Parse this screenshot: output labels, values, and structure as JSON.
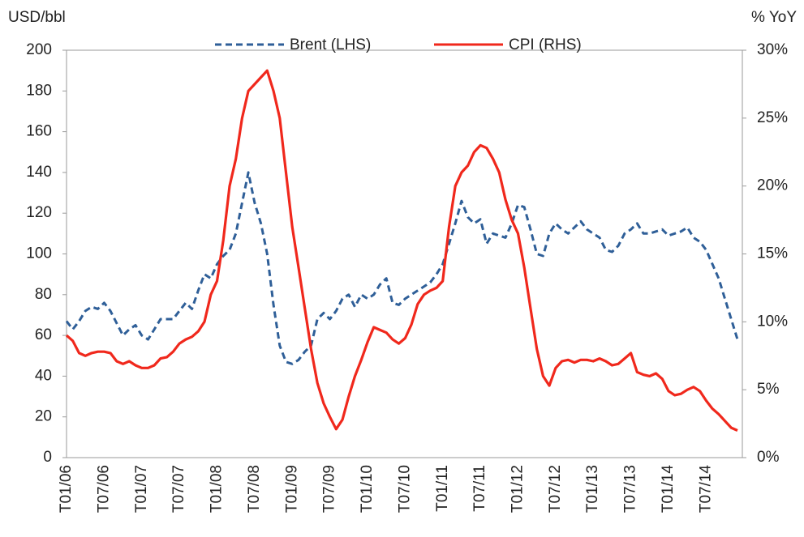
{
  "chart_data": {
    "type": "line",
    "y_label": "USD/bbl",
    "y2_label": "% YoY",
    "categories": [
      "T01/06",
      null,
      null,
      null,
      null,
      null,
      "T07/06",
      null,
      null,
      null,
      null,
      null,
      "T01/07",
      null,
      null,
      null,
      null,
      null,
      "T07/07",
      null,
      null,
      null,
      null,
      null,
      "T01/08",
      null,
      null,
      null,
      null,
      null,
      "T07/08",
      null,
      null,
      null,
      null,
      null,
      "T01/09",
      null,
      null,
      null,
      null,
      null,
      "T07/09",
      null,
      null,
      null,
      null,
      null,
      "T01/10",
      null,
      null,
      null,
      null,
      null,
      "T07/10",
      null,
      null,
      null,
      null,
      null,
      "T01/11",
      null,
      null,
      null,
      null,
      null,
      "T07/11",
      null,
      null,
      null,
      null,
      null,
      "T01/12",
      null,
      null,
      null,
      null,
      null,
      "T07/12",
      null,
      null,
      null,
      null,
      null,
      "T01/13",
      null,
      null,
      null,
      null,
      null,
      "T07/13",
      null,
      null,
      null,
      null,
      null,
      "T01/14",
      null,
      null,
      null,
      null,
      null,
      "T07/14",
      null,
      null,
      null,
      null,
      null
    ],
    "series": [
      {
        "name": "Brent (LHS)",
        "color": "#2f5f98",
        "dash": true,
        "axis": "y",
        "values": [
          67,
          63,
          67,
          72,
          74,
          73,
          76,
          72,
          66,
          60,
          63,
          65,
          60,
          58,
          63,
          68,
          68,
          68,
          72,
          76,
          73,
          82,
          90,
          88,
          95,
          99,
          102,
          110,
          125,
          140,
          125,
          115,
          100,
          75,
          55,
          47,
          46,
          48,
          52,
          55,
          68,
          71,
          68,
          72,
          78,
          80,
          74,
          80,
          78,
          80,
          85,
          88,
          76,
          75,
          78,
          80,
          82,
          84,
          86,
          90,
          95,
          105,
          115,
          126,
          118,
          115,
          117,
          105,
          110,
          109,
          108,
          115,
          124,
          123,
          112,
          100,
          99,
          110,
          115,
          112,
          110,
          113,
          116,
          112,
          110,
          108,
          102,
          101,
          104,
          110,
          112,
          115,
          110,
          110,
          111,
          112,
          109,
          110,
          111,
          113,
          108,
          106,
          102,
          95,
          88,
          78,
          68,
          58
        ]
      },
      {
        "name": "CPI (RHS)",
        "color": "#f0281c",
        "dash": false,
        "axis": "y2",
        "values": [
          9,
          8.6,
          7.7,
          7.5,
          7.7,
          7.8,
          7.8,
          7.7,
          7.1,
          6.9,
          7.1,
          6.8,
          6.6,
          6.6,
          6.8,
          7.3,
          7.4,
          7.8,
          8.4,
          8.7,
          8.9,
          9.3,
          10,
          12,
          13,
          16,
          20,
          22,
          25,
          27,
          27.5,
          28,
          28.5,
          27,
          25,
          21,
          17,
          14,
          11,
          8,
          5.5,
          4,
          3,
          2.1,
          2.8,
          4.5,
          6,
          7.2,
          8.5,
          9.6,
          9.4,
          9.2,
          8.7,
          8.4,
          8.8,
          9.8,
          11.3,
          12,
          12.3,
          12.5,
          13,
          17,
          20,
          21,
          21.5,
          22.5,
          23,
          22.8,
          22,
          21,
          19,
          17.5,
          16.5,
          14,
          11,
          8,
          6,
          5.3,
          6.6,
          7.1,
          7.2,
          7,
          7.2,
          7.2,
          7.1,
          7.3,
          7.1,
          6.8,
          6.9,
          7.3,
          7.7,
          6.3,
          6.1,
          6,
          6.2,
          5.8,
          4.9,
          4.6,
          4.7,
          5,
          5.2,
          4.9,
          4.2,
          3.6,
          3.2,
          2.7,
          2.2,
          2
        ]
      }
    ],
    "ylim": [
      0,
      200
    ],
    "yticks": [
      0,
      20,
      40,
      60,
      80,
      100,
      120,
      140,
      160,
      180,
      200
    ],
    "y2lim": [
      0,
      30
    ],
    "y2ticks": [
      {
        "value": 0,
        "label": "0%"
      },
      {
        "value": 5,
        "label": "5%"
      },
      {
        "value": 10,
        "label": "10%"
      },
      {
        "value": 15,
        "label": "15%"
      },
      {
        "value": 20,
        "label": "20%"
      },
      {
        "value": 25,
        "label": "25%"
      },
      {
        "value": 30,
        "label": "30%"
      }
    ],
    "grid": false,
    "legend": "top"
  }
}
